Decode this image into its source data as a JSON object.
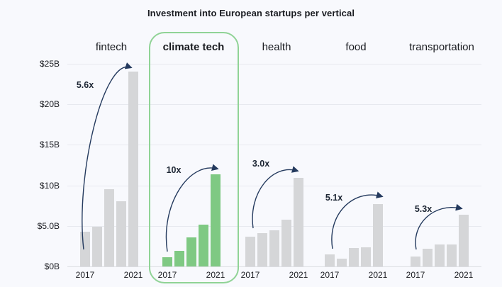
{
  "title": "Investment into European startups per vertical",
  "colors": {
    "background": "#f8f9fd",
    "text": "#191b20",
    "bar_default": "#d5d6d8",
    "bar_highlight": "#7fc983",
    "highlight_border": "#90d396",
    "arrow": "#243a5e",
    "multiplier_text": "#1c2533",
    "gridline": "#e7e9ef",
    "axis_line": "#dbdde2"
  },
  "chart_data": {
    "type": "bar",
    "title": "Investment into European startups per vertical",
    "unit": "$B",
    "ylim": [
      0,
      25
    ],
    "grid": true,
    "y_ticks": [
      {
        "label": "$25B",
        "value": 25
      },
      {
        "label": "$20B",
        "value": 20
      },
      {
        "label": "$15B",
        "value": 15
      },
      {
        "label": "$10B",
        "value": 10
      },
      {
        "label": "$5.0B",
        "value": 5
      },
      {
        "label": "$0B",
        "value": 0
      }
    ],
    "years": [
      "2017",
      "2018",
      "2019",
      "2020",
      "2021"
    ],
    "x_tick_labels": [
      "2017",
      "2021"
    ],
    "series": [
      {
        "name": "fintech",
        "values": [
          4.3,
          4.9,
          9.5,
          8.0,
          24.0
        ],
        "multiplier": "5.6x",
        "highlighted": false
      },
      {
        "name": "climate tech",
        "values": [
          1.1,
          1.9,
          3.6,
          5.2,
          11.4
        ],
        "multiplier": "10x",
        "highlighted": true
      },
      {
        "name": "health",
        "values": [
          3.7,
          4.1,
          4.5,
          5.8,
          10.9
        ],
        "multiplier": "3.0x",
        "highlighted": false
      },
      {
        "name": "food",
        "values": [
          1.5,
          1.0,
          2.3,
          2.4,
          7.7
        ],
        "multiplier": "5.1x",
        "highlighted": false
      },
      {
        "name": "transportation",
        "values": [
          1.2,
          2.2,
          2.7,
          2.7,
          6.4
        ],
        "multiplier": "5.3x",
        "highlighted": false
      }
    ]
  }
}
